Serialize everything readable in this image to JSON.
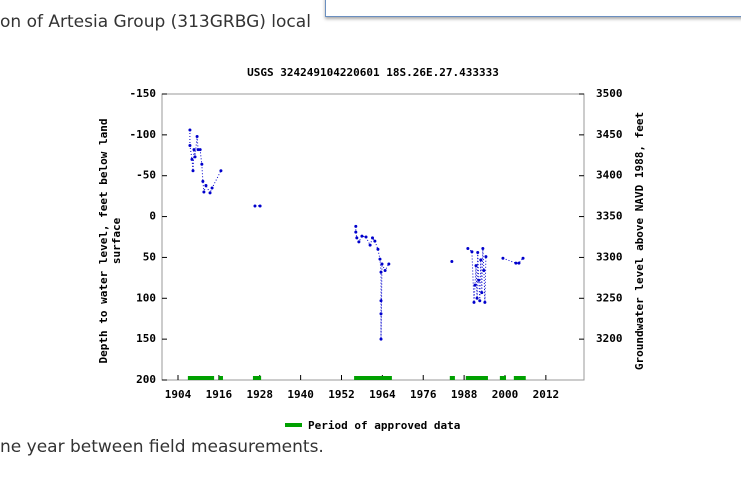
{
  "page": {
    "text_top": "on of Artesia Group (313GRBG) local",
    "text_bottom": "ne year between field measurements."
  },
  "chart_data": {
    "type": "scatter",
    "title": "USGS 324249104220601 18S.26E.27.433333",
    "y_label": "Depth to water level, feet below land surface",
    "y2_label": "Groundwater level above NAVD 1988, feet",
    "xlim": [
      1899.3,
      2023.2
    ],
    "xticks": [
      1904,
      1916,
      1928,
      1940,
      1952,
      1964,
      1976,
      1988,
      2000,
      2012
    ],
    "ylim": [
      200,
      -150
    ],
    "yticks": [
      -150,
      -100,
      -50,
      0,
      50,
      100,
      150,
      200
    ],
    "y2lim": [
      3150,
      3500
    ],
    "y2ticks": [
      3200,
      3250,
      3300,
      3350,
      3400,
      3450,
      3500
    ],
    "series": [
      {
        "color": "#0000cc",
        "x": [
          1907.5,
          1907.5,
          1908.1,
          1908.4,
          1908.7,
          1909,
          1909.6,
          1909.9,
          1910.5,
          1911,
          1911.3,
          1911.6,
          1912.2,
          1913.4,
          1914,
          1916.6,
          null,
          1926.6,
          1928.1,
          null,
          1956.2,
          1956.2,
          1956.5,
          1957.1,
          1958,
          1959.2,
          1960.4,
          1961.1,
          1961.8,
          1962.7,
          1963.3,
          1963.6,
          1963.6,
          1963.6,
          1963.6,
          1963.9,
          1964.8,
          1965.9,
          null,
          1984.4,
          null,
          1989.1,
          1990.3,
          1990.9,
          1991.2,
          1991.5,
          1991.8,
          1992,
          1992.3,
          1992.6,
          1992.9,
          1993.2,
          1993.5,
          1993.8,
          1994.1,
          1994.4,
          null,
          1999.4,
          2003.2,
          2004.1,
          2005.3
        ],
        "values": [
          -106,
          -87,
          -70,
          -56,
          -82,
          -73,
          -98,
          -82,
          -82,
          -64,
          -43,
          -30,
          -38,
          -29,
          -35,
          -56,
          null,
          -13,
          -13,
          null,
          12,
          19,
          26,
          31,
          24,
          25,
          35,
          26,
          30,
          40,
          52,
          68,
          103,
          119,
          150,
          58,
          66,
          58,
          null,
          55,
          null,
          39,
          43,
          105,
          84,
          60,
          100,
          44,
          78,
          103,
          53,
          93,
          39,
          66,
          105,
          49,
          null,
          51,
          57,
          57,
          51
        ]
      }
    ],
    "approved": {
      "name": "Period of approved data",
      "color": "#00a000",
      "ranges": [
        [
          1906.9,
          1914.6
        ],
        [
          1916,
          1917.2
        ],
        [
          1926,
          1928.4
        ],
        [
          1955.7,
          1966.8
        ],
        [
          1983.8,
          1985.3
        ],
        [
          1988.5,
          1995
        ],
        [
          1998.5,
          2000.3
        ],
        [
          2002.6,
          2006.1
        ]
      ]
    }
  }
}
